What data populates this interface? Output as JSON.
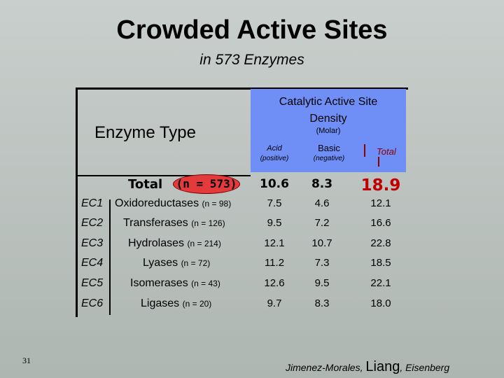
{
  "title": "Crowded Active Sites",
  "subtitle": "in 573 Enzymes",
  "header": {
    "catalytic": "Catalytic Active Site",
    "density": "Density",
    "molar": "(Molar)",
    "enzyme_type": "Enzyme Type",
    "acid": "Acid",
    "acid_sub": "(positive)",
    "basic": "Basic",
    "basic_sub": "(negative)",
    "total": "Total"
  },
  "totals": {
    "label": "Total",
    "n": "(n = 573)",
    "acid": "10.6",
    "basic": "8.3",
    "total": "18.9"
  },
  "rows": [
    {
      "code": "EC1",
      "name": "Oxidoreductases",
      "n": "(n = 98)",
      "acid": "7.5",
      "basic": "4.6",
      "total": "12.1"
    },
    {
      "code": "EC2",
      "name": "Transferases",
      "n": "(n = 126)",
      "acid": "9.5",
      "basic": "7.2",
      "total": "16.6"
    },
    {
      "code": "EC3",
      "name": "Hydrolases",
      "n": "(n = 214)",
      "acid": "12.1",
      "basic": "10.7",
      "total": "22.8"
    },
    {
      "code": "EC4",
      "name": "Lyases",
      "n": "(n = 72)",
      "acid": "11.2",
      "basic": "7.3",
      "total": "18.5"
    },
    {
      "code": "EC5",
      "name": "Isomerases",
      "n": "(n = 43)",
      "acid": "12.6",
      "basic": "9.5",
      "total": "22.1"
    },
    {
      "code": "EC6",
      "name": "Ligases",
      "n": "(n = 20)",
      "acid": "9.7",
      "basic": "8.3",
      "total": "18.0"
    }
  ],
  "footer": {
    "page": "31",
    "credit_a": "Jimenez-Morales, ",
    "credit_b": "Liang",
    "credit_c": ", Eisenberg"
  },
  "colors": {
    "header_bg": "#6f8ff7",
    "total_red": "#c00000",
    "oval": "#e33b3b"
  }
}
